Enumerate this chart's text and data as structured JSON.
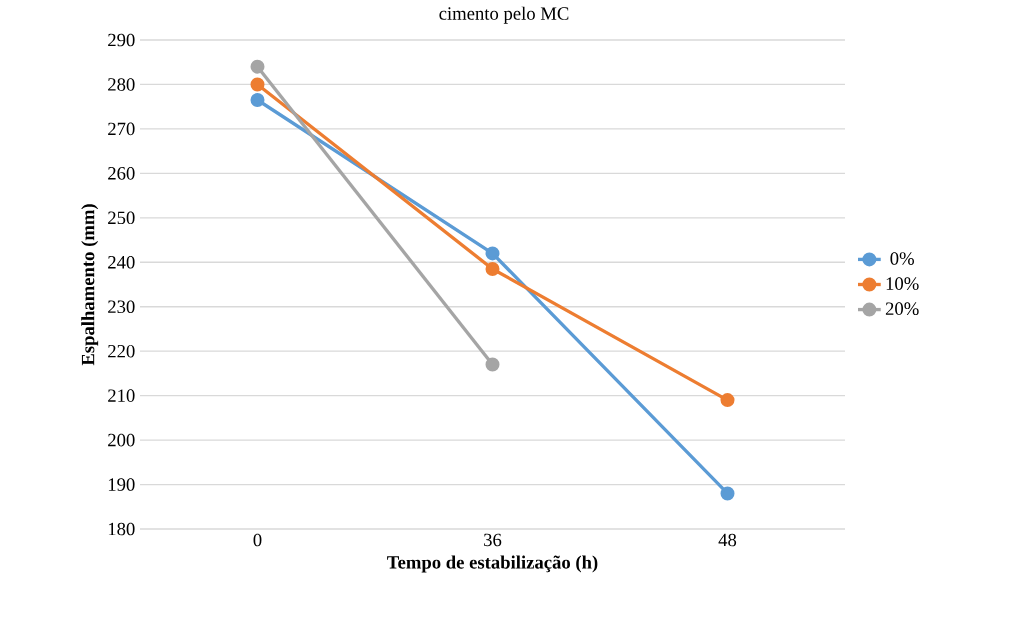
{
  "chart_data": {
    "type": "line",
    "title": "cimento pelo MC",
    "xlabel": "Tempo de estabilização (h)",
    "ylabel": "Espalhamento (mm)",
    "categories": [
      "0",
      "36",
      "48"
    ],
    "series": [
      {
        "name": "0%",
        "color": "#5b9bd5",
        "values": [
          276.5,
          242,
          188
        ]
      },
      {
        "name": "10%",
        "color": "#ed7d31",
        "values": [
          280,
          238.5,
          209
        ]
      },
      {
        "name": "20%",
        "color": "#a5a5a5",
        "values": [
          284,
          217,
          null
        ]
      }
    ],
    "ylim": [
      180,
      290
    ],
    "yticks": [
      180,
      190,
      200,
      210,
      220,
      230,
      240,
      250,
      260,
      270,
      280,
      290
    ],
    "grid": "y",
    "legend": "right",
    "marker": "circle",
    "line_style": "solid"
  }
}
